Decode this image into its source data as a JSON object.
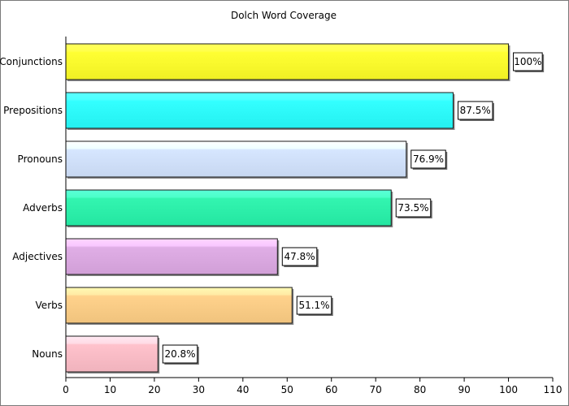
{
  "chart_data": {
    "type": "bar",
    "orientation": "horizontal",
    "title": "Dolch Word Coverage",
    "xlabel": "",
    "ylabel": "",
    "xlim": [
      0,
      110
    ],
    "x_ticks": [
      0,
      10,
      20,
      30,
      40,
      50,
      60,
      70,
      80,
      90,
      100,
      110
    ],
    "grid": false,
    "legend": "none",
    "categories": [
      "Conjunctions",
      "Prepositions",
      "Pronouns",
      "Adverbs",
      "Adjectives",
      "Verbs",
      "Nouns"
    ],
    "values": [
      100,
      87.5,
      76.9,
      73.5,
      47.8,
      51.1,
      20.8
    ],
    "value_labels": [
      "100%",
      "87.5%",
      "76.9%",
      "73.5%",
      "47.8%",
      "51.1%",
      "20.8%"
    ],
    "colors": [
      "#ffff33",
      "#33ffff",
      "#d6e6ff",
      "#33f5b0",
      "#e0aee6",
      "#ffd28c",
      "#ffc2cc"
    ]
  }
}
